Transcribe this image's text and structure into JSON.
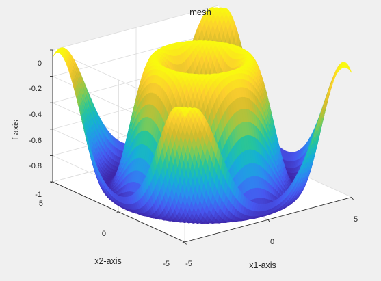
{
  "chart_data": {
    "type": "surface",
    "title": "mesh",
    "xlabel": "x1-axis",
    "ylabel": "x2-axis",
    "zlabel": "f-axis",
    "xlim": [
      -5,
      5
    ],
    "ylim": [
      -5,
      5
    ],
    "zlim": [
      -1,
      0
    ],
    "xticks": [
      "-5",
      "0",
      "5"
    ],
    "yticks": [
      "-5",
      "0",
      "5"
    ],
    "zticks": [
      "-1",
      "-0.8",
      "-0.6",
      "-0.4",
      "-0.2",
      "0"
    ],
    "colormap": "parula",
    "colors": {
      "background": "#f0f0f0",
      "axes_face": "#ffffff",
      "axis_line": "#262626",
      "grid": "#dcdcdc",
      "colormap_stops": [
        "#3e26a8",
        "#4757f0",
        "#2b8cf0",
        "#15b1d4",
        "#27c59a",
        "#86cb50",
        "#d3bb2c",
        "#fcce2e",
        "#f9fb0e"
      ]
    },
    "surface_description_values": {
      "function_minimum": -1,
      "function_maximum": 0
    }
  }
}
